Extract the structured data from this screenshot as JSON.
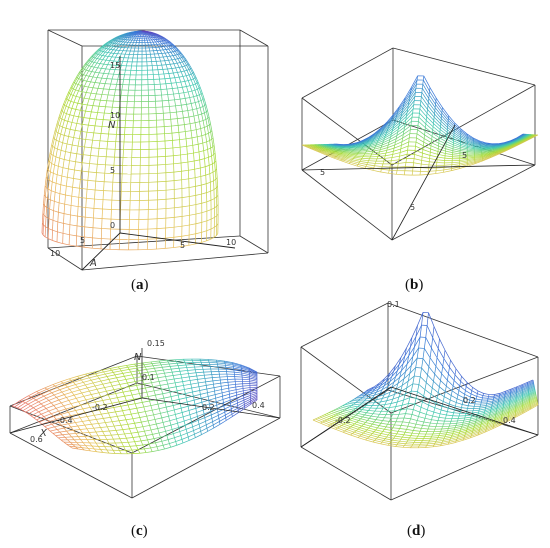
{
  "panels": [
    {
      "id": "a",
      "caption": "a",
      "z_label": "N",
      "z_ticks": [
        "15",
        "10",
        "5",
        "0"
      ],
      "x_label": "A",
      "x_ticks": [
        "10",
        "5"
      ],
      "y_ticks": [
        "5",
        "10"
      ]
    },
    {
      "id": "b",
      "caption": "b",
      "z_label": "",
      "z_ticks": [],
      "x_label": "",
      "x_ticks": [
        "5",
        "5"
      ],
      "y_ticks": [
        "5"
      ]
    },
    {
      "id": "c",
      "caption": "c",
      "z_label": "N",
      "z_ticks": [
        "0.15",
        "0.1"
      ],
      "x_label": "X",
      "x_ticks": [
        "0.6",
        "-0.4",
        "-0.2"
      ],
      "y_ticks": [
        "0.2",
        "0.4"
      ]
    },
    {
      "id": "d",
      "caption": "d",
      "z_label": "",
      "z_ticks": [
        "0.1"
      ],
      "x_label": "",
      "x_ticks": [
        "-0.2",
        "0.2"
      ],
      "y_ticks": [
        "0.4"
      ]
    }
  ],
  "colors": {
    "box": "#333333",
    "axis": "#222222",
    "gradient": [
      "#e96a6a",
      "#e8c05a",
      "#a8dc3a",
      "#40c9b0",
      "#3a78d8",
      "#6a3ab8"
    ]
  }
}
